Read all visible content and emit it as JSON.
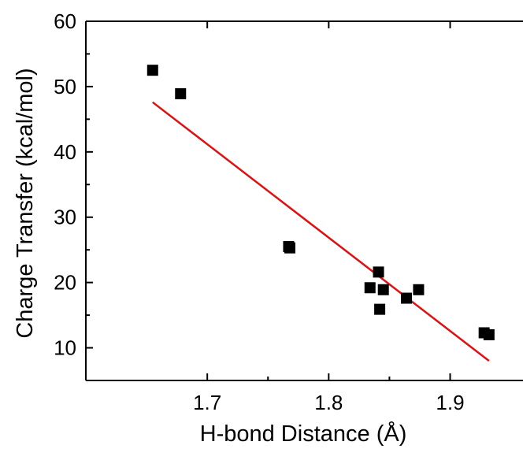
{
  "chart_data": {
    "type": "scatter",
    "xlabel": "H-bond Distance (Å)",
    "ylabel": "Charge Transfer (kcal/mol)",
    "xlim": [
      1.6,
      1.96
    ],
    "ylim": [
      5,
      60
    ],
    "xticks": [
      1.7,
      1.8,
      1.9
    ],
    "xtick_labels": [
      "1.7",
      "1.8",
      "1.9"
    ],
    "yticks": [
      10,
      20,
      30,
      40,
      50,
      60
    ],
    "ytick_labels": [
      "10",
      "20",
      "30",
      "40",
      "50",
      "60"
    ],
    "grid": false,
    "legend": "none",
    "series": [
      {
        "marker": "square",
        "color": "#000000",
        "points": [
          {
            "x": 1.655,
            "y": 52.5
          },
          {
            "x": 1.678,
            "y": 48.9
          },
          {
            "x": 1.767,
            "y": 25.5
          },
          {
            "x": 1.768,
            "y": 25.3
          },
          {
            "x": 1.834,
            "y": 19.2
          },
          {
            "x": 1.841,
            "y": 21.6
          },
          {
            "x": 1.842,
            "y": 15.9
          },
          {
            "x": 1.845,
            "y": 18.9
          },
          {
            "x": 1.864,
            "y": 17.6
          },
          {
            "x": 1.874,
            "y": 18.9
          },
          {
            "x": 1.928,
            "y": 12.3
          },
          {
            "x": 1.932,
            "y": 12.0
          }
        ]
      }
    ],
    "fit_line": {
      "color": "#dd1111",
      "x": [
        1.655,
        1.932
      ],
      "y": [
        47.6,
        8.0
      ]
    }
  }
}
